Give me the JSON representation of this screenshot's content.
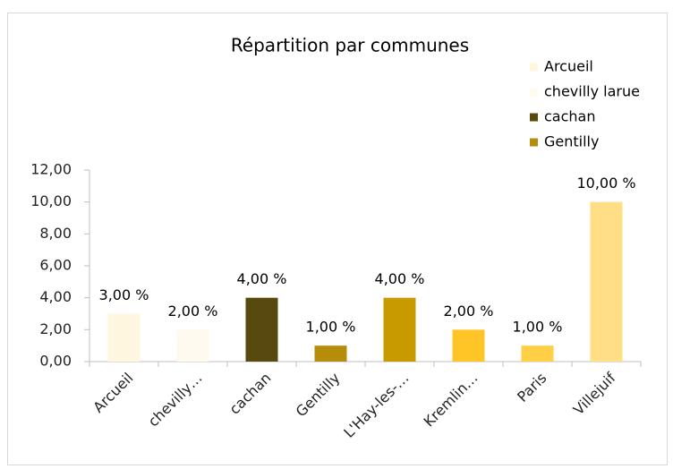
{
  "chart_data": {
    "type": "bar",
    "title": "Répartition par communes",
    "categories": [
      "Arcueil",
      "chevilly…",
      "cachan",
      "Gentilly",
      "L'Hay-les-…",
      "Kremlin…",
      "Paris",
      "Villejuif"
    ],
    "values": [
      3,
      2,
      4,
      1,
      4,
      2,
      1,
      10
    ],
    "value_labels": [
      "3,00 %",
      "2,00 %",
      "4,00 %",
      "1,00 %",
      "4,00 %",
      "2,00 %",
      "1,00 %",
      "10,00 %"
    ],
    "colors": [
      "#fff6e0",
      "#fffaf0",
      "#584a0f",
      "#b58c0c",
      "#c89a00",
      "#ffc526",
      "#ffcf45",
      "#ffde85"
    ],
    "legend": [
      {
        "name": "Arcueil",
        "color": "#fff6e0"
      },
      {
        "name": "chevilly larue",
        "color": "#fffaf0"
      },
      {
        "name": "cachan",
        "color": "#584a0f"
      },
      {
        "name": "Gentilly",
        "color": "#b58c0c"
      }
    ],
    "ylim": [
      0,
      12
    ],
    "yticks": [
      {
        "value": 0,
        "label": "0,00"
      },
      {
        "value": 2,
        "label": "2,00"
      },
      {
        "value": 4,
        "label": "4,00"
      },
      {
        "value": 6,
        "label": "6,00"
      },
      {
        "value": 8,
        "label": "8,00"
      },
      {
        "value": 10,
        "label": "10,00"
      },
      {
        "value": 12,
        "label": "12,00"
      }
    ],
    "grid": false
  }
}
